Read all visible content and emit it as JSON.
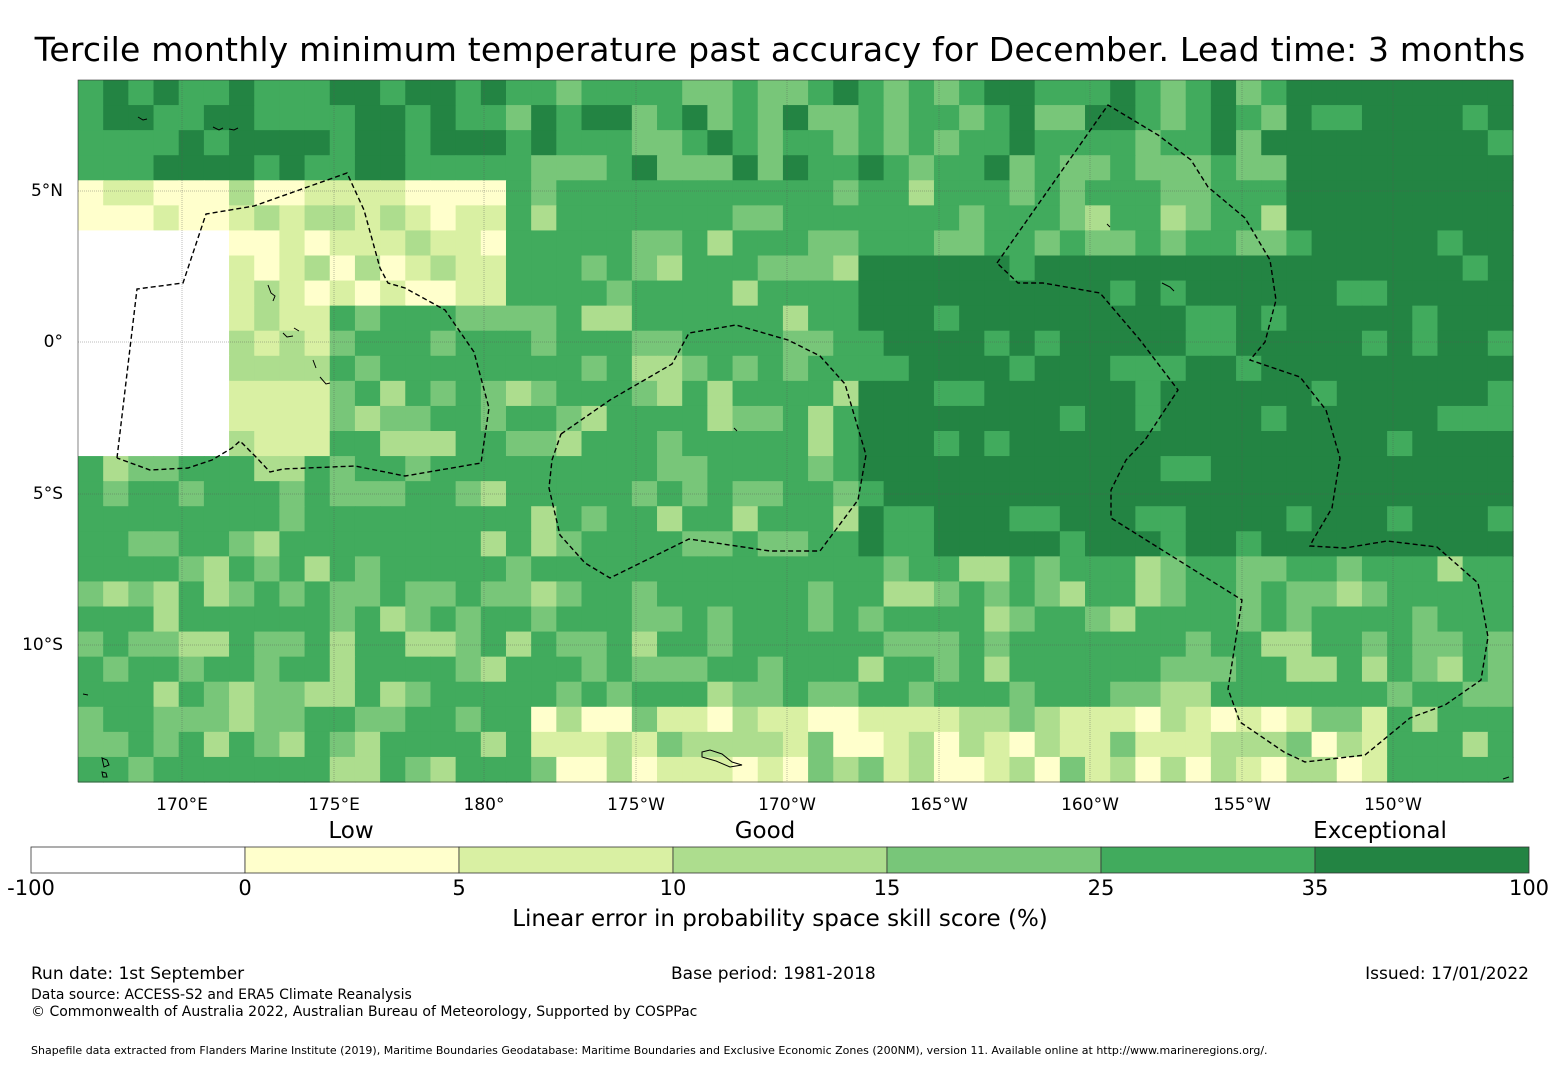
{
  "title": "Tercile monthly minimum temperature past accuracy for December. Lead time: 3 months",
  "lon_labels": [
    "170°E",
    "175°E",
    "180°",
    "175°W",
    "170°W",
    "165°W",
    "160°W",
    "155°W",
    "150°W"
  ],
  "lat_labels": [
    "5°N",
    "0°",
    "5°S",
    "10°S"
  ],
  "categories": {
    "low": "Low",
    "good": "Good",
    "exceptional": "Exceptional"
  },
  "colorbar": {
    "ticks": [
      "-100",
      "0",
      "5",
      "10",
      "15",
      "25",
      "35",
      "100"
    ],
    "colors": [
      "#ffffff",
      "#ffffcc",
      "#d9f0a3",
      "#addd8e",
      "#78c679",
      "#41ab5d",
      "#238443"
    ],
    "label": "Linear error in probability space skill score (%)"
  },
  "footer": {
    "run_date": "Run date: 1st September",
    "base_period": "Base period: 1981-2018",
    "issued": "Issued: 17/01/2022",
    "source": "Data source: ACCESS-S2 and ERA5 Climate Reanalysis",
    "copyright": "© Commonwealth of Australia 2022, Australian Bureau of Meteorology, Supported by COSPPac",
    "shapefile": "Shapefile data extracted from Flanders Marine Institute (2019), Maritime Boundaries Geodatabase: Maritime Boundaries and Exclusive Economic Zones (200NM), version 11. Available online at http://www.marineregions.org/."
  }
}
